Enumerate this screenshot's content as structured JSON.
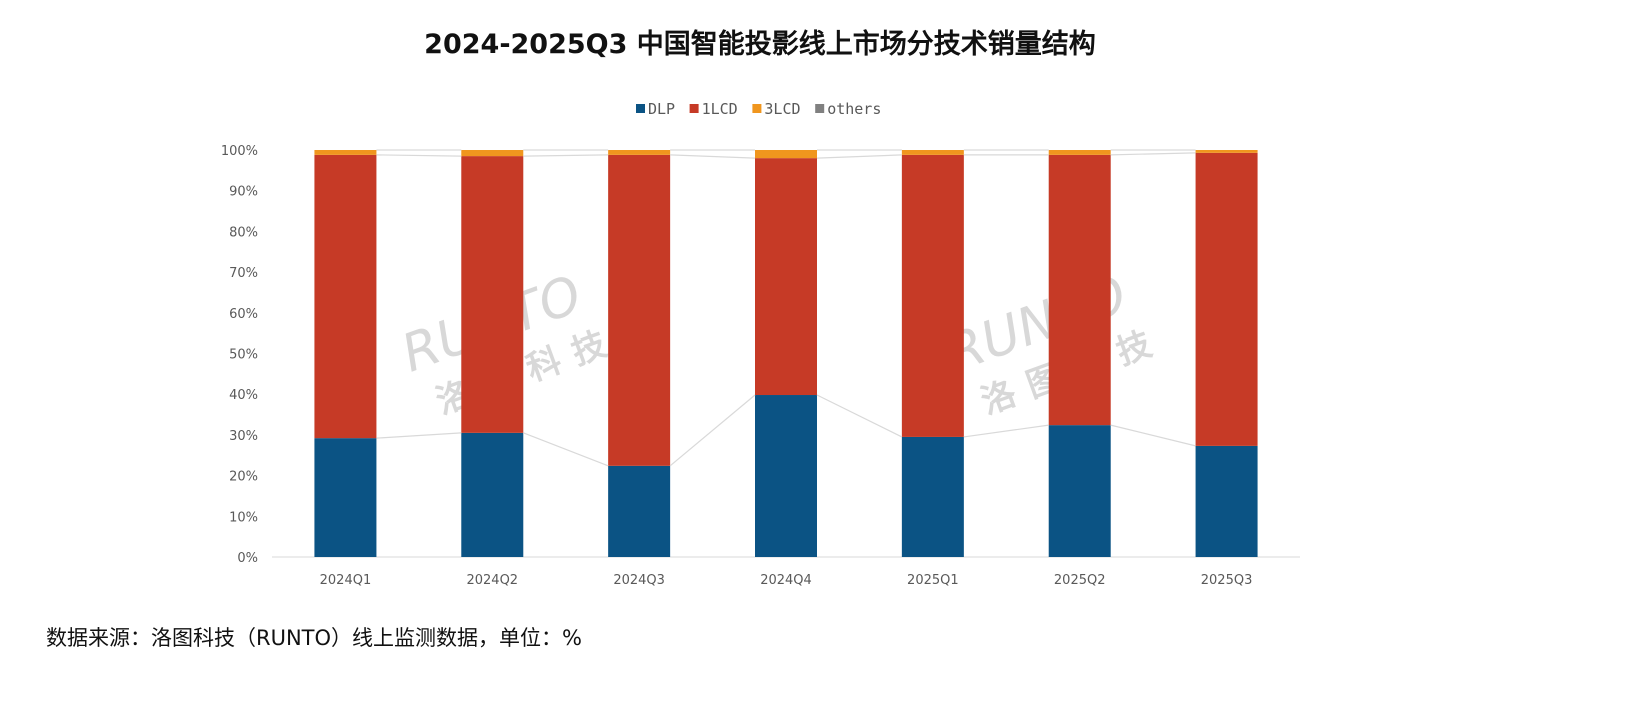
{
  "chart_data": {
    "type": "bar",
    "stacked": true,
    "title": "2024-2025Q3 中国智能投影线上市场分技术销量结构",
    "categories": [
      "2024Q1",
      "2024Q2",
      "2024Q3",
      "2024Q4",
      "2025Q1",
      "2025Q2",
      "2025Q3"
    ],
    "series": [
      {
        "name": "DLP",
        "color": "#0b5384",
        "values": [
          29.2,
          30.5,
          22.4,
          39.8,
          29.5,
          32.4,
          27.3
        ]
      },
      {
        "name": "1LCD",
        "color": "#c63a26",
        "values": [
          69.6,
          68.0,
          76.4,
          58.2,
          69.3,
          66.4,
          72.0
        ]
      },
      {
        "name": "3LCD",
        "color": "#f0961e",
        "values": [
          1.2,
          1.5,
          1.2,
          2.0,
          1.2,
          1.2,
          0.7
        ]
      },
      {
        "name": "others",
        "color": "#808080",
        "values": [
          0,
          0,
          0,
          0,
          0,
          0,
          0
        ]
      }
    ],
    "yticks": [
      "0%",
      "10%",
      "20%",
      "30%",
      "40%",
      "50%",
      "60%",
      "70%",
      "80%",
      "90%",
      "100%"
    ],
    "ylim": [
      0,
      100
    ],
    "legend": "top-center",
    "xlabel": "",
    "ylabel": ""
  },
  "source": "数据来源：洛图科技（RUNTO）线上监测数据，单位：%",
  "watermark": {
    "brand": "RUNTO",
    "cn": "洛图科技"
  }
}
